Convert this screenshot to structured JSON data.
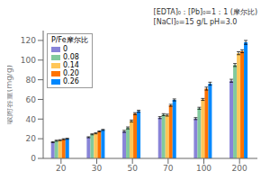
{
  "chart_data": {
    "type": "bar",
    "ylabel": "吸附容量(mg/g)",
    "legend_title": "P/Fe摩尔比",
    "annotations": [
      "[EDTA]₀：[Pb]₀=1：1 (摩尔比)",
      "[NaCl]₀=15 g/L pH=3.0"
    ],
    "categories": [
      "20",
      "30",
      "50",
      "70",
      "100",
      "200"
    ],
    "series": [
      {
        "name": "0",
        "color": "#8884d8",
        "values": [
          16.5,
          21.5,
          27.5,
          41.5,
          40.5,
          79.0
        ],
        "errors": [
          0.5,
          0.5,
          1.0,
          1.0,
          1.0,
          1.5
        ]
      },
      {
        "name": "0.08",
        "color": "#82ca9d",
        "values": [
          18.0,
          24.5,
          31.0,
          44.5,
          51.0,
          95.0
        ],
        "errors": [
          0.5,
          0.5,
          1.0,
          1.0,
          1.0,
          1.5
        ]
      },
      {
        "name": "0.14",
        "color": "#ffc658",
        "values": [
          18.5,
          25.5,
          38.0,
          44.0,
          60.0,
          107.0
        ],
        "errors": [
          0.5,
          0.5,
          1.0,
          1.0,
          1.0,
          1.5
        ]
      },
      {
        "name": "0.20",
        "color": "#ff7300",
        "values": [
          19.5,
          27.5,
          45.5,
          54.0,
          71.0,
          109.0
        ],
        "errors": [
          0.5,
          0.5,
          1.0,
          1.0,
          1.5,
          1.5
        ]
      },
      {
        "name": "0.26",
        "color": "#0088fe",
        "values": [
          20.0,
          29.0,
          48.0,
          59.5,
          76.0,
          118.0
        ],
        "errors": [
          0.5,
          0.5,
          1.0,
          1.0,
          1.5,
          2.0
        ]
      }
    ],
    "ylim": [
      0,
      130
    ],
    "yticks": [
      0,
      20,
      40,
      60,
      80,
      100,
      120
    ],
    "grid": false,
    "legend": "upper left"
  }
}
